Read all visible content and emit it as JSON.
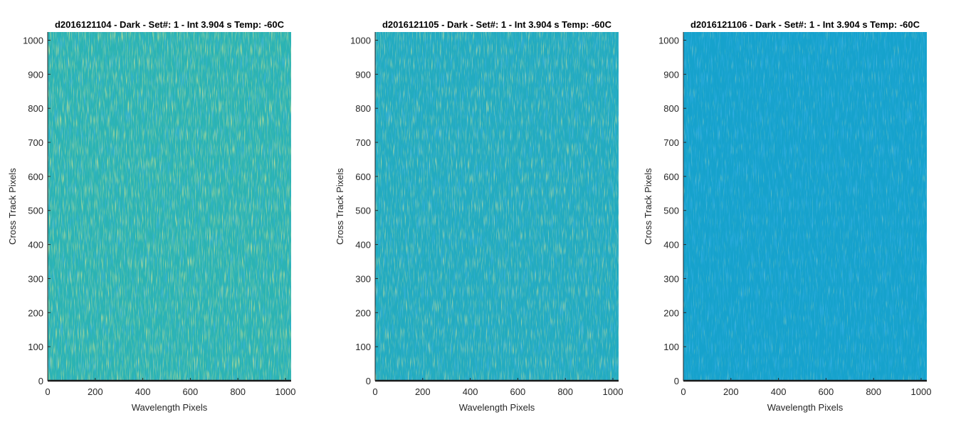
{
  "chart_data": [
    {
      "type": "heatmap",
      "title": "d2016121104 - Dark - Set#: 1 - Int 3.904 s Temp: -60C",
      "xlabel": "Wavelength Pixels",
      "ylabel": "Cross Track Pixels",
      "xlim": [
        0,
        1024
      ],
      "ylim": [
        0,
        1024
      ],
      "xticks": [
        0,
        200,
        400,
        600,
        800,
        1000
      ],
      "yticks": [
        0,
        100,
        200,
        300,
        400,
        500,
        600,
        700,
        800,
        900,
        1000
      ],
      "base_color": "#2bb3b3",
      "colormap": "parula"
    },
    {
      "type": "heatmap",
      "title": "d2016121105 - Dark - Set#: 1 - Int 3.904 s Temp: -60C",
      "xlabel": "Wavelength Pixels",
      "ylabel": "Cross Track Pixels",
      "xlim": [
        0,
        1024
      ],
      "ylim": [
        0,
        1024
      ],
      "xticks": [
        0,
        200,
        400,
        600,
        800,
        1000
      ],
      "yticks": [
        0,
        100,
        200,
        300,
        400,
        500,
        600,
        700,
        800,
        900,
        1000
      ],
      "base_color": "#23abbf",
      "colormap": "parula"
    },
    {
      "type": "heatmap",
      "title": "d2016121106 - Dark - Set#: 1 - Int 3.904 s Temp: -60C",
      "xlabel": "Wavelength Pixels",
      "ylabel": "Cross Track Pixels",
      "xlim": [
        0,
        1024
      ],
      "ylim": [
        0,
        1024
      ],
      "xticks": [
        0,
        200,
        400,
        600,
        800,
        1000
      ],
      "yticks": [
        0,
        100,
        200,
        300,
        400,
        500,
        600,
        700,
        800,
        900,
        1000
      ],
      "base_color": "#16a2cc",
      "colormap": "parula"
    }
  ]
}
